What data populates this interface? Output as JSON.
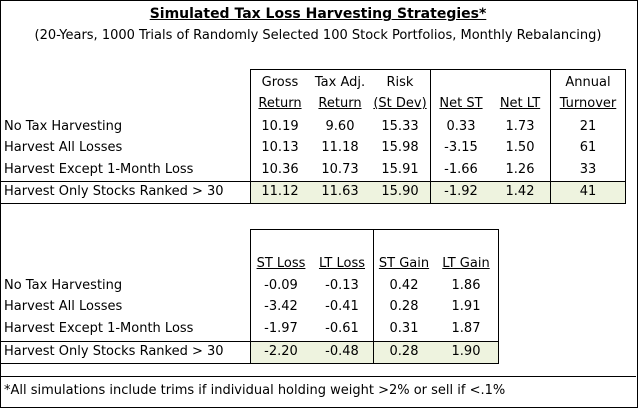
{
  "title": "Simulated Tax Loss Harvesting Strategies*",
  "subtitle": "(20-Years, 1000 Trials of Randomly Selected 100 Stock Portfolios, Monthly Rebalancing)",
  "table1": {
    "headers": [
      {
        "line1": "Gross",
        "line2": "Return"
      },
      {
        "line1": "Tax Adj.",
        "line2": "Return"
      },
      {
        "line1": "Risk",
        "line2": "(St Dev)"
      },
      {
        "line1": "",
        "line2": "Net ST"
      },
      {
        "line1": "",
        "line2": "Net LT"
      },
      {
        "line1": "Annual",
        "line2": "Turnover"
      }
    ],
    "rows": [
      {
        "label": "No Tax Harvesting",
        "values": [
          "10.19",
          "9.60",
          "15.33",
          "0.33",
          "1.73",
          "21"
        ]
      },
      {
        "label": "Harvest All Losses",
        "values": [
          "10.13",
          "11.18",
          "15.98",
          "-3.15",
          "1.50",
          "61"
        ]
      },
      {
        "label": "Harvest Except 1-Month Loss",
        "values": [
          "10.36",
          "10.73",
          "15.91",
          "-1.66",
          "1.26",
          "33"
        ]
      },
      {
        "label": "Harvest Only Stocks Ranked > 30",
        "values": [
          "11.12",
          "11.63",
          "15.90",
          "-1.92",
          "1.42",
          "41"
        ]
      }
    ]
  },
  "table2": {
    "headers": [
      "ST Loss",
      "LT Loss",
      "ST Gain",
      "LT Gain"
    ],
    "rows": [
      {
        "label": "No Tax Harvesting",
        "values": [
          "-0.09",
          "-0.13",
          "0.42",
          "1.86"
        ]
      },
      {
        "label": "Harvest All Losses",
        "values": [
          "-3.42",
          "-0.41",
          "0.28",
          "1.91"
        ]
      },
      {
        "label": "Harvest Except 1-Month Loss",
        "values": [
          "-1.97",
          "-0.61",
          "0.31",
          "1.87"
        ]
      },
      {
        "label": "Harvest Only Stocks Ranked > 30",
        "values": [
          "-2.20",
          "-0.48",
          "0.28",
          "1.90"
        ]
      }
    ]
  },
  "footnote": "*All simulations include trims if individual holding weight >2% or sell if <.1%",
  "colors": {
    "highlight": "#eef3df"
  }
}
